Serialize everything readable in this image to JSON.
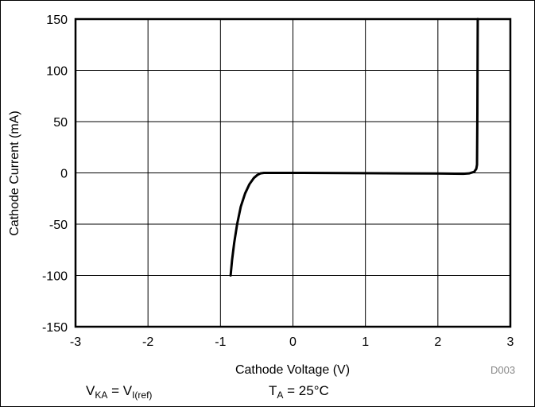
{
  "chart_data": {
    "type": "line",
    "xlabel": "Cathode Voltage (V)",
    "ylabel": "Cathode Current (mA)",
    "xlim": [
      -3,
      3
    ],
    "ylim": [
      -150,
      150
    ],
    "xticks": [
      -3,
      -2,
      -1,
      0,
      1,
      2,
      3
    ],
    "yticks": [
      -150,
      -100,
      -50,
      0,
      50,
      100,
      150
    ],
    "xtick_labels": [
      "-3",
      "-2",
      "-1",
      "0",
      "1",
      "2",
      "3"
    ],
    "ytick_labels": [
      "-150",
      "-100",
      "-50",
      "0",
      "50",
      "100",
      "150"
    ],
    "grid": true,
    "series": [
      {
        "x": [
          -0.86,
          -0.84,
          -0.81,
          -0.77,
          -0.72,
          -0.66,
          -0.6,
          -0.54,
          -0.49,
          -0.45,
          -0.4,
          -0.3,
          0,
          1,
          2,
          2.35,
          2.43,
          2.5,
          2.53,
          2.54,
          2.545,
          2.55
        ],
        "y": [
          -100,
          -85,
          -68,
          -50,
          -33,
          -20,
          -11,
          -5,
          -2,
          -0.5,
          0,
          0,
          0,
          -0.3,
          -0.6,
          -0.9,
          -0.5,
          1,
          4,
          8,
          60,
          150
        ]
      }
    ]
  },
  "figure_id": "D003",
  "conditions": {
    "vka_main": "V",
    "vka_sub": "KA",
    "equals": " = ",
    "vref_main": "V",
    "vref_sub": "I(ref)",
    "ta_main": "T",
    "ta_sub": "A",
    "ta_value": " = 25°C"
  },
  "colors": {
    "line": "#000000",
    "grid": "#000000",
    "fig_id": "#888888"
  }
}
